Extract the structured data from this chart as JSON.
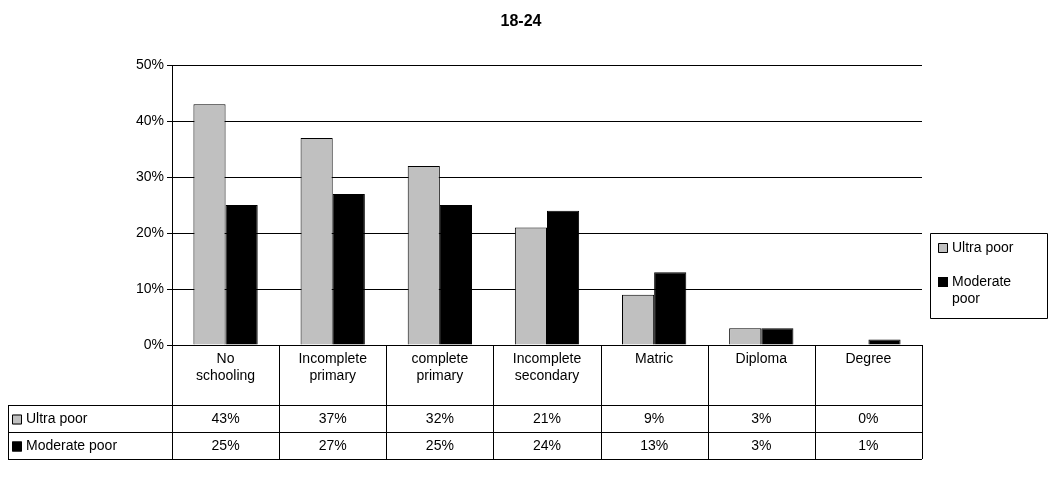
{
  "chart_data": {
    "type": "bar",
    "title": "18-24",
    "categories": [
      "No schooling",
      "Incomplete primary",
      "complete primary",
      "Incomplete secondary",
      "Matric",
      "Diploma",
      "Degree"
    ],
    "series": [
      {
        "name": "Ultra poor",
        "color": "#c0c0c0",
        "values": [
          43,
          37,
          32,
          21,
          9,
          3,
          0
        ],
        "value_labels": [
          "43%",
          "37%",
          "32%",
          "21%",
          "9%",
          "3%",
          "0%"
        ]
      },
      {
        "name": "Moderate poor",
        "color": "#000000",
        "values": [
          25,
          27,
          25,
          24,
          13,
          3,
          1
        ],
        "value_labels": [
          "25%",
          "27%",
          "25%",
          "24%",
          "13%",
          "3%",
          "1%"
        ]
      }
    ],
    "ylim": [
      0,
      50
    ],
    "yticks": [
      {
        "value": 0,
        "label": "0%"
      },
      {
        "value": 10,
        "label": "10%"
      },
      {
        "value": 20,
        "label": "20%"
      },
      {
        "value": 30,
        "label": "30%"
      },
      {
        "value": 40,
        "label": "40%"
      },
      {
        "value": 50,
        "label": "50%"
      }
    ],
    "grid": "y",
    "legend": "right"
  }
}
